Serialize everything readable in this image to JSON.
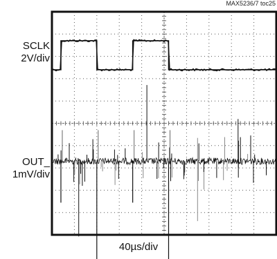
{
  "figure_id": "MAX5236/7 toc25",
  "chart_data": {
    "type": "line",
    "title": "",
    "xlabel": "40µs/div",
    "traces": [
      {
        "name_line1": "SCLK",
        "name_line2": "2V/div",
        "kind": "square-wave",
        "high_intervals_div": [
          [
            0.4,
            2.0
          ],
          [
            3.6,
            5.2
          ]
        ],
        "high_level_div": 8.7,
        "low_level_div": 7.4,
        "color": "#111111"
      },
      {
        "name_line1": "OUT_",
        "name_line2": "1mV/div",
        "kind": "noise",
        "baseline_div": 3.3,
        "noise_pp_div": 0.3,
        "color": "#111111"
      }
    ],
    "grid": {
      "x_divisions": 10,
      "y_divisions": 10,
      "style": "dotted"
    }
  }
}
